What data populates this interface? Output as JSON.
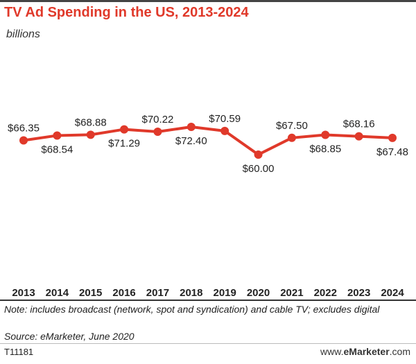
{
  "header": {
    "title": "TV Ad Spending in the US, 2013-2024",
    "subtitle": "billions"
  },
  "footer": {
    "note": "Note: includes broadcast (network, spot and syndication) and cable TV; excludes digital",
    "source": "Source: eMarketer, June 2020",
    "code": "T11181",
    "brand_prefix": "www.",
    "brand_bold": "eMarketer",
    "brand_suffix": ".com"
  },
  "colors": {
    "title": "#e0392a",
    "line": "#e0392a"
  },
  "chart_data": {
    "type": "line",
    "title": "TV Ad Spending in the US, 2013-2024",
    "subtitle": "billions",
    "categories": [
      "2013",
      "2014",
      "2015",
      "2016",
      "2017",
      "2018",
      "2019",
      "2020",
      "2021",
      "2022",
      "2023",
      "2024"
    ],
    "values": [
      66.35,
      68.54,
      68.88,
      71.29,
      70.22,
      72.4,
      70.59,
      60.0,
      67.5,
      68.85,
      68.16,
      67.48
    ],
    "data_labels": [
      "$66.35",
      "$68.54",
      "$68.88",
      "$71.29",
      "$70.22",
      "$72.40",
      "$70.59",
      "$60.00",
      "$67.50",
      "$68.85",
      "$68.16",
      "$67.48"
    ],
    "label_positions": [
      "above",
      "below",
      "above",
      "below",
      "above",
      "below",
      "above",
      "below",
      "above",
      "below",
      "above",
      "below"
    ],
    "xlabel": "",
    "ylabel": "",
    "ylim": [
      0,
      75
    ],
    "grid": false,
    "legend": "none"
  }
}
